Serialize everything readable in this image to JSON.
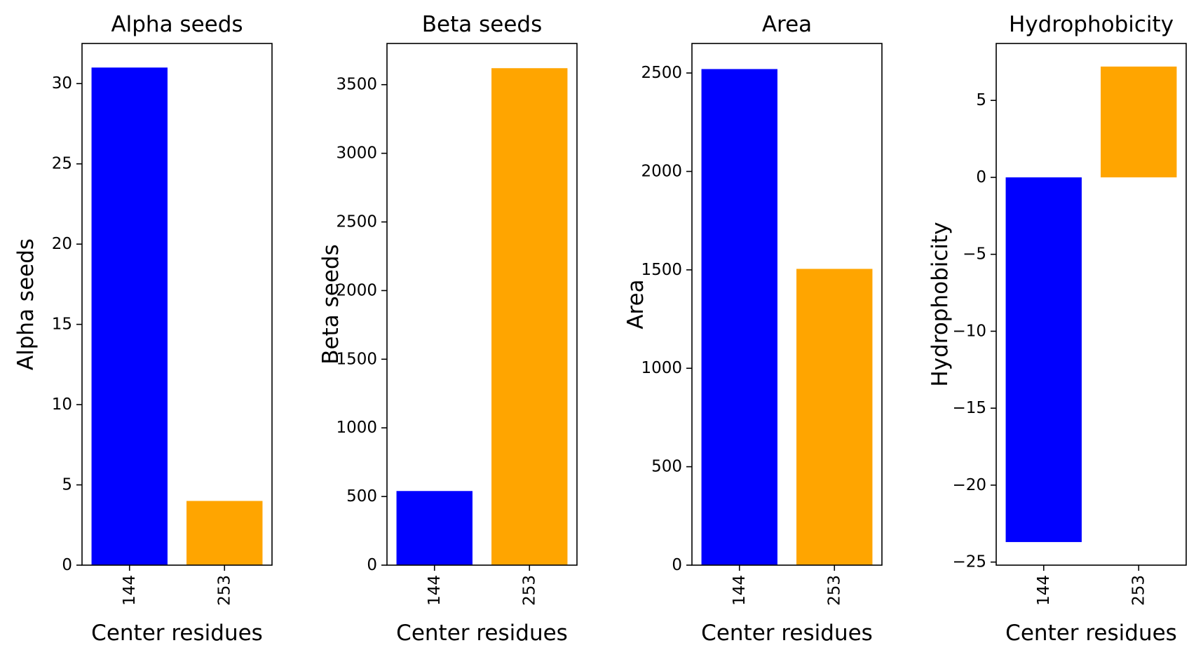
{
  "chart_data": [
    {
      "type": "bar",
      "title": "Alpha seeds",
      "xlabel": "Center residues",
      "ylabel": "Alpha seeds",
      "categories": [
        "144",
        "253"
      ],
      "values": [
        31,
        4
      ],
      "colors": [
        "#0000ff",
        "#ffa500"
      ],
      "ylim": [
        0,
        32.5
      ],
      "yticks": [
        "0",
        "5",
        "10",
        "15",
        "20",
        "25",
        "30"
      ],
      "grid": false,
      "legend": "none"
    },
    {
      "type": "bar",
      "title": "Beta seeds",
      "xlabel": "Center residues",
      "ylabel": "Beta seeds",
      "categories": [
        "144",
        "253"
      ],
      "values": [
        540,
        3620
      ],
      "colors": [
        "#0000ff",
        "#ffa500"
      ],
      "ylim": [
        0,
        3800
      ],
      "yticks": [
        "0",
        "500",
        "1000",
        "1500",
        "2000",
        "2500",
        "3000",
        "3500"
      ],
      "grid": false,
      "legend": "none"
    },
    {
      "type": "bar",
      "title": "Area",
      "xlabel": "Center residues",
      "ylabel": "Area",
      "categories": [
        "144",
        "253"
      ],
      "values": [
        2520,
        1505
      ],
      "colors": [
        "#0000ff",
        "#ffa500"
      ],
      "ylim": [
        0,
        2650
      ],
      "yticks": [
        "0",
        "500",
        "1000",
        "1500",
        "2000",
        "2500"
      ],
      "grid": false,
      "legend": "none"
    },
    {
      "type": "bar",
      "title": "Hydrophobicity",
      "xlabel": "Center residues",
      "ylabel": "Hydrophobicity",
      "categories": [
        "144",
        "253"
      ],
      "values": [
        -23.7,
        7.2
      ],
      "colors": [
        "#0000ff",
        "#ffa500"
      ],
      "ylim": [
        -25.2,
        8.7
      ],
      "yticks": [
        "−25",
        "−20",
        "−15",
        "−10",
        "−5",
        "0",
        "5"
      ],
      "grid": false,
      "legend": "none"
    }
  ]
}
